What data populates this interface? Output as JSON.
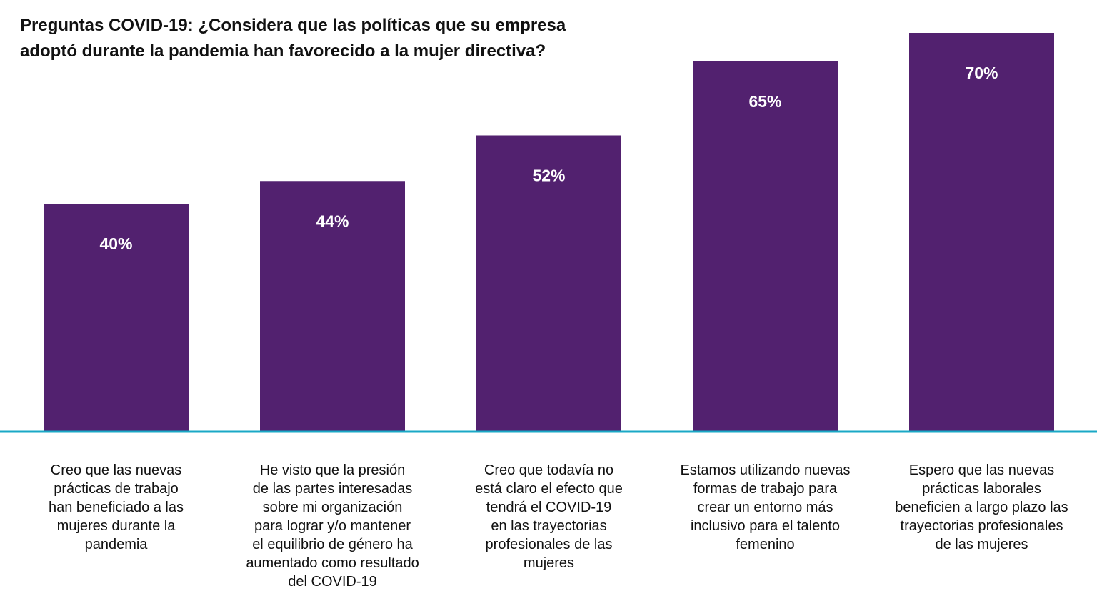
{
  "chart_data": {
    "type": "bar",
    "title_lines": [
      "Preguntas COVID-19: ¿Considera que las políticas que su empresa",
      "adoptó durante la pandemia han favorecido a la mujer directiva?"
    ],
    "categories": [
      [
        "Creo que las nuevas",
        "prácticas de trabajo",
        "han beneficiado a las",
        "mujeres durante la",
        "pandemia"
      ],
      [
        "He visto que la presión",
        "de las partes interesadas",
        "sobre mi organización",
        "para lograr y/o mantener",
        "el equilibrio de género ha",
        "aumentado como resultado",
        "del COVID-19"
      ],
      [
        "Creo que todavía no",
        "está claro el efecto que",
        "tendrá el COVID-19",
        "en las trayectorias",
        "profesionales de las",
        "mujeres"
      ],
      [
        "Estamos utilizando nuevas",
        "formas de trabajo para",
        "crear un entorno más",
        "inclusivo para el talento",
        "femenino"
      ],
      [
        "Espero que las nuevas",
        "prácticas laborales",
        "beneficien a largo plazo las",
        "trayectorias profesionales",
        "de las mujeres"
      ]
    ],
    "values": [
      40,
      44,
      52,
      65,
      70
    ],
    "value_labels": [
      "40%",
      "44%",
      "52%",
      "65%",
      "70%"
    ],
    "ylim": [
      0,
      70
    ],
    "xlabel": "",
    "ylabel": "",
    "grid": false,
    "bar_color": "#52216f",
    "axis_color": "#1aa8c6"
  }
}
